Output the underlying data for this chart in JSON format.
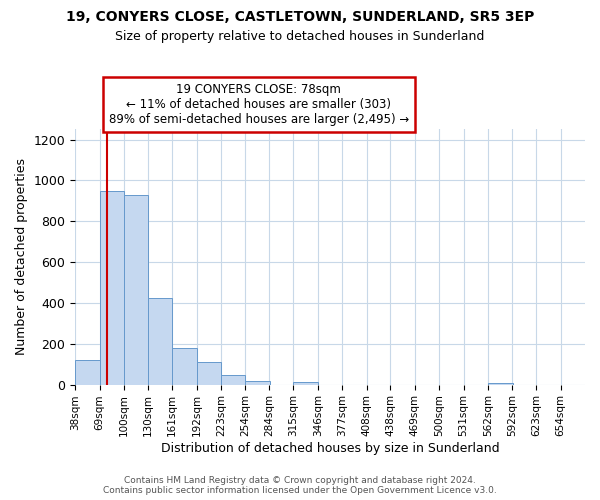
{
  "title1": "19, CONYERS CLOSE, CASTLETOWN, SUNDERLAND, SR5 3EP",
  "title2": "Size of property relative to detached houses in Sunderland",
  "xlabel": "Distribution of detached houses by size in Sunderland",
  "ylabel": "Number of detached properties",
  "bins": [
    "38sqm",
    "69sqm",
    "100sqm",
    "130sqm",
    "161sqm",
    "192sqm",
    "223sqm",
    "254sqm",
    "284sqm",
    "315sqm",
    "346sqm",
    "377sqm",
    "408sqm",
    "438sqm",
    "469sqm",
    "500sqm",
    "531sqm",
    "562sqm",
    "592sqm",
    "623sqm",
    "654sqm"
  ],
  "bin_edges": [
    38,
    69,
    100,
    130,
    161,
    192,
    223,
    254,
    284,
    315,
    346,
    377,
    408,
    438,
    469,
    500,
    531,
    562,
    592,
    623,
    654
  ],
  "bar_heights": [
    120,
    950,
    930,
    425,
    180,
    110,
    45,
    20,
    0,
    15,
    0,
    0,
    0,
    0,
    0,
    0,
    0,
    10,
    0,
    0
  ],
  "bar_color": "#c5d8f0",
  "bar_edge_color": "#6699cc",
  "reference_line_x": 78,
  "reference_line_color": "#cc0000",
  "annotation_line1": "19 CONYERS CLOSE: 78sqm",
  "annotation_line2": "← 11% of detached houses are smaller (303)",
  "annotation_line3": "89% of semi-detached houses are larger (2,495) →",
  "ylim": [
    0,
    1250
  ],
  "yticks": [
    0,
    200,
    400,
    600,
    800,
    1000,
    1200
  ],
  "footer_line1": "Contains HM Land Registry data © Crown copyright and database right 2024.",
  "footer_line2": "Contains public sector information licensed under the Open Government Licence v3.0.",
  "background_color": "#ffffff",
  "grid_color": "#c8d8e8",
  "ann_box_color": "#cc0000"
}
